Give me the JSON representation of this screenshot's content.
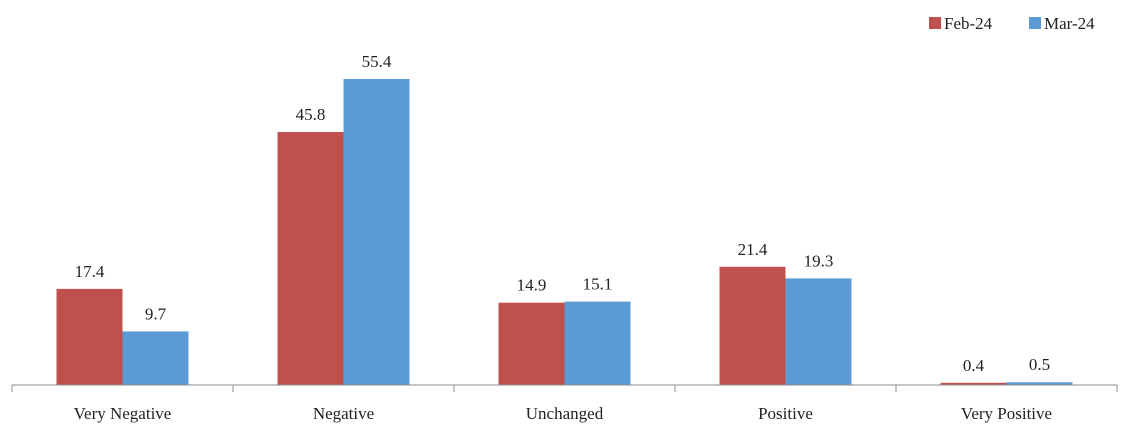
{
  "chart_data": {
    "type": "bar",
    "categories": [
      "Very Negative",
      "Negative",
      "Unchanged",
      "Positive",
      "Very Positive"
    ],
    "series": [
      {
        "name": "Feb-24",
        "values": [
          17.4,
          45.8,
          14.9,
          21.4,
          0.4
        ],
        "color": "#C0504D"
      },
      {
        "name": "Mar-24",
        "values": [
          9.7,
          55.4,
          15.1,
          19.3,
          0.5
        ],
        "color": "#5B9BD5"
      }
    ],
    "ylim": [
      0,
      55.4
    ],
    "grid": false,
    "legend_position": "top-right"
  }
}
